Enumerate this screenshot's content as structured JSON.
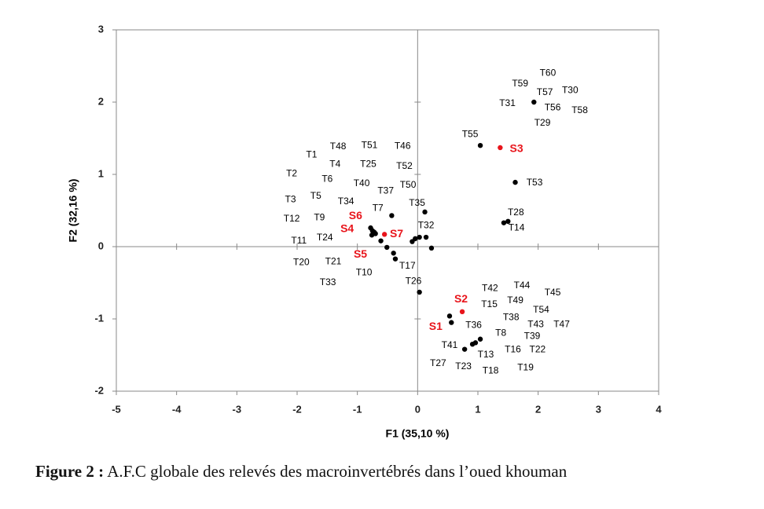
{
  "chart_data": {
    "type": "scatter",
    "x_label": "F1 (35,10 %)",
    "y_label": "F2 (32,16 %)",
    "xlim": [
      -5,
      4
    ],
    "xticks": [
      -5,
      -4,
      -3,
      -2,
      -1,
      0,
      1,
      2,
      3,
      4
    ],
    "ylim": [
      -2,
      3
    ],
    "yticks": [
      -2,
      -1,
      0,
      1,
      2,
      3
    ],
    "zero_lines": true,
    "series": [
      {
        "color": "#000000",
        "x": [
          1.93,
          1.04,
          1.62,
          1.43,
          1.5,
          -0.43,
          0.12,
          -0.78,
          -0.75,
          -0.72,
          -0.7,
          -0.76,
          -0.61,
          -0.51,
          -0.4,
          -0.37,
          -0.09,
          -0.04,
          0.03,
          0.14,
          0.23,
          0.03,
          0.53,
          0.56,
          0.78,
          0.91,
          0.96,
          1.04
        ],
        "values": [
          2.0,
          1.4,
          0.89,
          0.33,
          0.35,
          0.43,
          0.48,
          0.26,
          0.22,
          0.2,
          0.18,
          0.16,
          0.08,
          -0.01,
          -0.09,
          -0.17,
          0.07,
          0.11,
          0.13,
          0.13,
          -0.02,
          -0.63,
          -0.96,
          -1.05,
          -1.42,
          -1.35,
          -1.33,
          -1.28
        ]
      },
      {
        "color": "#e8141b",
        "x": [
          1.37,
          -0.55,
          0.74
        ],
        "values": [
          1.37,
          0.17,
          -0.9
        ]
      }
    ],
    "annotations": [
      {
        "text": "T60",
        "x": 2.16,
        "y": 2.4,
        "color": "#000000"
      },
      {
        "text": "T59",
        "x": 1.7,
        "y": 2.25,
        "color": "#000000"
      },
      {
        "text": "T57",
        "x": 2.11,
        "y": 2.13,
        "color": "#000000"
      },
      {
        "text": "T30",
        "x": 2.53,
        "y": 2.16,
        "color": "#000000"
      },
      {
        "text": "T31",
        "x": 1.49,
        "y": 1.98,
        "color": "#000000"
      },
      {
        "text": "T56",
        "x": 2.24,
        "y": 1.92,
        "color": "#000000"
      },
      {
        "text": "T58",
        "x": 2.69,
        "y": 1.88,
        "color": "#000000"
      },
      {
        "text": "T29",
        "x": 2.07,
        "y": 1.71,
        "color": "#000000"
      },
      {
        "text": "T55",
        "x": 0.87,
        "y": 1.55,
        "color": "#000000"
      },
      {
        "text": "S3",
        "x": 1.64,
        "y": 1.35,
        "color": "#e8141b"
      },
      {
        "text": "T53",
        "x": 1.94,
        "y": 0.88,
        "color": "#000000"
      },
      {
        "text": "T28",
        "x": 1.63,
        "y": 0.47,
        "color": "#000000"
      },
      {
        "text": "T14",
        "x": 1.64,
        "y": 0.26,
        "color": "#000000"
      },
      {
        "text": "T1",
        "x": -1.76,
        "y": 1.27,
        "color": "#000000"
      },
      {
        "text": "T48",
        "x": -1.32,
        "y": 1.38,
        "color": "#000000"
      },
      {
        "text": "T51",
        "x": -0.8,
        "y": 1.4,
        "color": "#000000"
      },
      {
        "text": "T46",
        "x": -0.25,
        "y": 1.39,
        "color": "#000000"
      },
      {
        "text": "T4",
        "x": -1.37,
        "y": 1.14,
        "color": "#000000"
      },
      {
        "text": "T25",
        "x": -0.82,
        "y": 1.14,
        "color": "#000000"
      },
      {
        "text": "T52",
        "x": -0.22,
        "y": 1.11,
        "color": "#000000"
      },
      {
        "text": "T2",
        "x": -2.09,
        "y": 1.01,
        "color": "#000000"
      },
      {
        "text": "T6",
        "x": -1.5,
        "y": 0.93,
        "color": "#000000"
      },
      {
        "text": "T40",
        "x": -0.93,
        "y": 0.87,
        "color": "#000000"
      },
      {
        "text": "T37",
        "x": -0.53,
        "y": 0.77,
        "color": "#000000"
      },
      {
        "text": "T50",
        "x": -0.16,
        "y": 0.85,
        "color": "#000000"
      },
      {
        "text": "T3",
        "x": -2.11,
        "y": 0.65,
        "color": "#000000"
      },
      {
        "text": "T5",
        "x": -1.69,
        "y": 0.7,
        "color": "#000000"
      },
      {
        "text": "T34",
        "x": -1.19,
        "y": 0.62,
        "color": "#000000"
      },
      {
        "text": "T7",
        "x": -0.66,
        "y": 0.53,
        "color": "#000000"
      },
      {
        "text": "T35",
        "x": -0.01,
        "y": 0.6,
        "color": "#000000"
      },
      {
        "text": "T12",
        "x": -2.09,
        "y": 0.38,
        "color": "#000000"
      },
      {
        "text": "T9",
        "x": -1.63,
        "y": 0.4,
        "color": "#000000"
      },
      {
        "text": "S6",
        "x": -1.03,
        "y": 0.42,
        "color": "#e8141b"
      },
      {
        "text": "S4",
        "x": -1.17,
        "y": 0.24,
        "color": "#e8141b"
      },
      {
        "text": "S7",
        "x": -0.35,
        "y": 0.17,
        "color": "#e8141b"
      },
      {
        "text": "T32",
        "x": 0.14,
        "y": 0.29,
        "color": "#000000"
      },
      {
        "text": "T24",
        "x": -1.54,
        "y": 0.12,
        "color": "#000000"
      },
      {
        "text": "T11",
        "x": -1.97,
        "y": 0.08,
        "color": "#000000"
      },
      {
        "text": "S5",
        "x": -0.95,
        "y": -0.11,
        "color": "#e8141b"
      },
      {
        "text": "T20",
        "x": -1.93,
        "y": -0.22,
        "color": "#000000"
      },
      {
        "text": "T21",
        "x": -1.4,
        "y": -0.21,
        "color": "#000000"
      },
      {
        "text": "T17",
        "x": -0.17,
        "y": -0.27,
        "color": "#000000"
      },
      {
        "text": "T10",
        "x": -0.89,
        "y": -0.36,
        "color": "#000000"
      },
      {
        "text": "T33",
        "x": -1.49,
        "y": -0.5,
        "color": "#000000"
      },
      {
        "text": "T26",
        "x": -0.07,
        "y": -0.48,
        "color": "#000000"
      },
      {
        "text": "T42",
        "x": 1.2,
        "y": -0.58,
        "color": "#000000"
      },
      {
        "text": "T44",
        "x": 1.73,
        "y": -0.54,
        "color": "#000000"
      },
      {
        "text": "T45",
        "x": 2.24,
        "y": -0.64,
        "color": "#000000"
      },
      {
        "text": "S2",
        "x": 0.72,
        "y": -0.73,
        "color": "#e8141b"
      },
      {
        "text": "T15",
        "x": 1.19,
        "y": -0.8,
        "color": "#000000"
      },
      {
        "text": "T49",
        "x": 1.62,
        "y": -0.75,
        "color": "#000000"
      },
      {
        "text": "T54",
        "x": 2.05,
        "y": -0.88,
        "color": "#000000"
      },
      {
        "text": "T38",
        "x": 1.55,
        "y": -0.98,
        "color": "#000000"
      },
      {
        "text": "T43",
        "x": 1.96,
        "y": -1.08,
        "color": "#000000"
      },
      {
        "text": "T47",
        "x": 2.39,
        "y": -1.08,
        "color": "#000000"
      },
      {
        "text": "S1",
        "x": 0.3,
        "y": -1.11,
        "color": "#e8141b"
      },
      {
        "text": "T36",
        "x": 0.93,
        "y": -1.09,
        "color": "#000000"
      },
      {
        "text": "T8",
        "x": 1.38,
        "y": -1.2,
        "color": "#000000"
      },
      {
        "text": "T39",
        "x": 1.9,
        "y": -1.24,
        "color": "#000000"
      },
      {
        "text": "T41",
        "x": 0.53,
        "y": -1.37,
        "color": "#000000"
      },
      {
        "text": "T16",
        "x": 1.58,
        "y": -1.43,
        "color": "#000000"
      },
      {
        "text": "T22",
        "x": 1.99,
        "y": -1.43,
        "color": "#000000"
      },
      {
        "text": "T13",
        "x": 1.13,
        "y": -1.5,
        "color": "#000000"
      },
      {
        "text": "T27",
        "x": 0.34,
        "y": -1.62,
        "color": "#000000"
      },
      {
        "text": "T23",
        "x": 0.76,
        "y": -1.66,
        "color": "#000000"
      },
      {
        "text": "T18",
        "x": 1.21,
        "y": -1.72,
        "color": "#000000"
      },
      {
        "text": "T19",
        "x": 1.79,
        "y": -1.68,
        "color": "#000000"
      }
    ]
  },
  "caption": {
    "label": "Figure 2 :",
    "text": "A.F.C globale des relevés des macroinvertébrés dans l’oued khouman"
  }
}
